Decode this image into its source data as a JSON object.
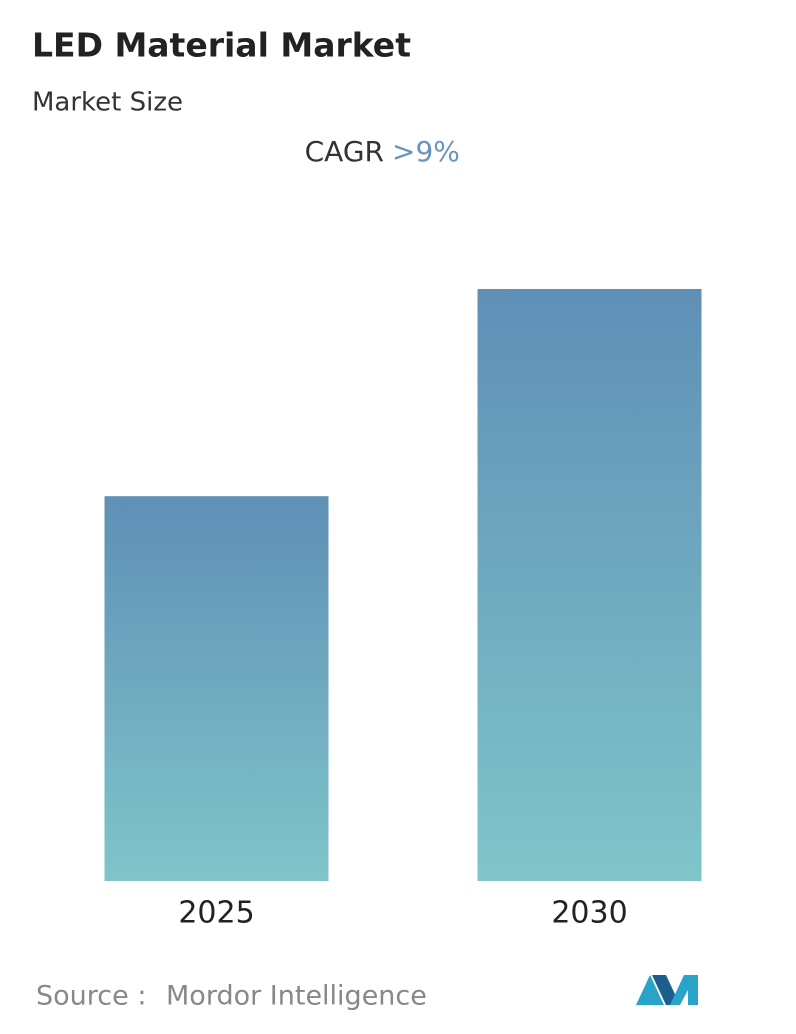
{
  "chart_data": {
    "type": "bar",
    "title": "LED Material Market",
    "subtitle": "Market Size",
    "cagr_label": "CAGR",
    "cagr_value": ">9%",
    "categories": [
      "2025",
      "2030"
    ],
    "values": [
      65,
      100
    ],
    "gradient": [
      "#5f8fb6",
      "#80c5ca"
    ],
    "ylim": [
      0,
      100
    ],
    "source_label": "Source :",
    "source": "Mordor Intelligence"
  }
}
